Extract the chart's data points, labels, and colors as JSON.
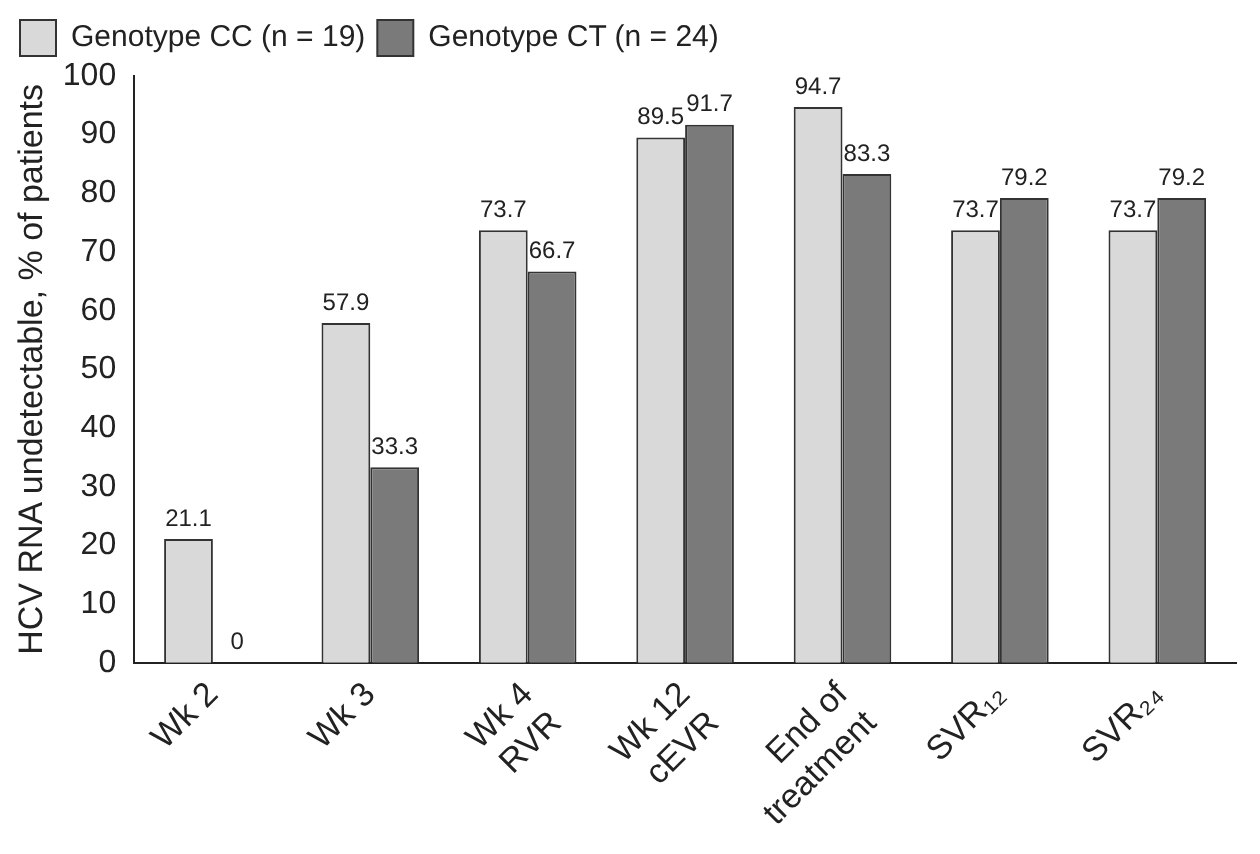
{
  "chart_data": {
    "type": "bar",
    "ylabel": "HCV RNA undetectable, % of patients",
    "categories": [
      "Wk 2",
      "Wk 3",
      "Wk 4\nRVR",
      "Wk 12\ncEVR",
      "End of\ntreatment",
      "SVR₁₂",
      "SVR₂₄"
    ],
    "series": [
      {
        "name": "Genotype CC (n = 19)",
        "color": "#d9d9d9",
        "values": [
          21.1,
          57.9,
          73.7,
          89.5,
          94.7,
          73.7,
          73.7
        ]
      },
      {
        "name": "Genotype CT (n = 24)",
        "color": "#7a7a7a",
        "values": [
          0,
          33.3,
          66.7,
          91.7,
          83.3,
          79.2,
          79.2
        ]
      }
    ],
    "ylim": [
      0,
      100
    ],
    "yticks": [
      0,
      10,
      20,
      30,
      40,
      50,
      60,
      70,
      80,
      90,
      100
    ],
    "grid": false,
    "legend": "top left",
    "data_labels": true
  }
}
